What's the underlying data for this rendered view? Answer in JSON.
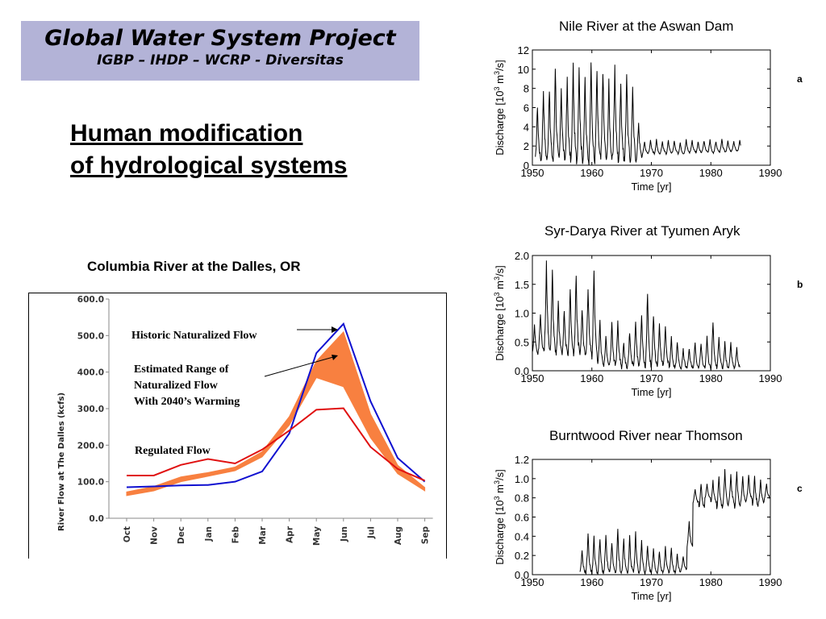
{
  "header": {
    "title": "Global Water System Project",
    "subtitle": "IGBP – IHDP – WCRP - Diversitas"
  },
  "slide_title": {
    "line1": "Human modification",
    "line2": "of hydrological systems"
  },
  "colors": {
    "header_bg": "#b3b3d7",
    "historic": "#1010d0",
    "regulated": "#e01010",
    "range": "#f88040"
  },
  "chart_data": [
    {
      "type": "line",
      "title": "Columbia River at the Dalles, OR",
      "ylabel": "River Flow at The Dalles (kcfs)",
      "xlabel": "",
      "categories": [
        "Oct",
        "Nov",
        "Dec",
        "Jan",
        "Feb",
        "Mar",
        "Apr",
        "May",
        "Jun",
        "Jul",
        "Aug",
        "Sep"
      ],
      "yticks": [
        "0.0",
        "100.0",
        "200.0",
        "300.0",
        "400.0",
        "500.0",
        "600.0"
      ],
      "ylim": [
        0,
        600
      ],
      "grid": false,
      "series": [
        {
          "name": "Historic Naturalized Flow",
          "color": "#1010d0",
          "values": [
            85,
            87,
            90,
            91,
            100,
            128,
            232,
            452,
            532,
            320,
            165,
            100
          ]
        },
        {
          "name": "Regulated Flow",
          "color": "#e01010",
          "values": [
            117,
            117,
            146,
            162,
            150,
            188,
            240,
            297,
            301,
            195,
            135,
            103
          ]
        }
      ],
      "band": {
        "name": "Estimated Range of Naturalized Flow With 2040’s Warming",
        "color": "#f88040",
        "lower": [
          62,
          75,
          100,
          115,
          130,
          168,
          255,
          385,
          360,
          220,
          122,
          75
        ],
        "upper": [
          72,
          87,
          113,
          125,
          140,
          182,
          278,
          430,
          510,
          285,
          145,
          84
        ]
      },
      "annotations": {
        "historic": "Historic Naturalized Flow",
        "range_line1": "Estimated Range of",
        "range_line2": "Naturalized Flow",
        "range_line3": "With 2040’s Warming",
        "regulated": "Regulated Flow"
      }
    },
    {
      "type": "line",
      "title": "Nile River at the Aswan Dam",
      "xlabel": "Time [yr]",
      "ylabel_main": "Discharge [10",
      "ylabel_sup": "3",
      "ylabel_tail": " m",
      "ylabel_sup2": "3",
      "ylabel_end": "/s]",
      "panel_label": "a",
      "xlim": [
        1950,
        1990
      ],
      "ylim": [
        0,
        12
      ],
      "xticks": [
        "1950",
        "1960",
        "1970",
        "1980",
        "1990"
      ],
      "yticks": [
        "0",
        "2",
        "4",
        "6",
        "8",
        "10",
        "12"
      ],
      "series": [
        {
          "name": "",
          "start_year": 1950.5,
          "end_year": 1985,
          "annual_peaks": [
            6.4,
            8.1,
            8.3,
            10.7,
            8.4,
            9.1,
            10.6,
            10.7,
            9.2,
            11.3,
            9.9,
            10.3,
            8.8,
            10.6,
            9.1,
            10.1,
            8.3,
            4.6,
            2.5,
            2.6,
            2.7,
            2.5,
            2.6,
            2.6,
            2.4,
            2.7,
            2.6,
            2.5,
            2.6,
            2.7,
            2.5,
            2.7,
            2.6,
            2.5,
            2.6
          ],
          "annual_lows": [
            0.6,
            0.6,
            0.6,
            0.5,
            0.6,
            0.6,
            0.5,
            0.6,
            0.6,
            0.5,
            0.6,
            0.6,
            0.5,
            0.6,
            0.6,
            0.5,
            0.6,
            0.8,
            1.2,
            1.3,
            1.2,
            1.3,
            1.2,
            1.3,
            1.2,
            1.3,
            1.4,
            1.3,
            1.4,
            1.3,
            1.4,
            1.4,
            1.4,
            1.5,
            1.5
          ]
        }
      ]
    },
    {
      "type": "line",
      "title": "Syr-Darya River at Tyumen Aryk",
      "xlabel": "Time [yr]",
      "ylabel_main": "Discharge [10",
      "ylabel_sup": "3",
      "ylabel_tail": " m",
      "ylabel_sup2": "3",
      "ylabel_end": "/s]",
      "panel_label": "b",
      "xlim": [
        1950,
        1990
      ],
      "ylim": [
        0,
        2.0
      ],
      "xticks": [
        "1950",
        "1960",
        "1970",
        "1980",
        "1990"
      ],
      "yticks": [
        "0.0",
        "0.5",
        "1.0",
        "1.5",
        "2.0"
      ],
      "series": [
        {
          "name": "",
          "start_year": 1950,
          "end_year": 1985,
          "annual_peaks": [
            0.8,
            1.0,
            1.9,
            1.8,
            1.2,
            1.1,
            1.5,
            1.7,
            1.1,
            1.5,
            1.8,
            0.9,
            0.6,
            0.9,
            0.9,
            0.5,
            0.7,
            0.9,
            1.0,
            1.4,
            1.0,
            0.8,
            0.8,
            0.6,
            0.5,
            0.4,
            0.4,
            0.5,
            0.5,
            0.6,
            0.9,
            0.6,
            0.5,
            0.5,
            0.4
          ],
          "annual_lows": [
            0.3,
            0.35,
            0.4,
            0.3,
            0.3,
            0.3,
            0.3,
            0.3,
            0.3,
            0.3,
            0.2,
            0.1,
            0.1,
            0.1,
            0.1,
            0.05,
            0.1,
            0.1,
            0.1,
            0.1,
            0.1,
            0.1,
            0.1,
            0.05,
            0.05,
            0.05,
            0.05,
            0.05,
            0.05,
            0.05,
            0.05,
            0.05,
            0.05,
            0.05,
            0.05
          ]
        }
      ]
    },
    {
      "type": "line",
      "title": "Burntwood River near Thomson",
      "xlabel": "Time [yr]",
      "ylabel_main": "Discharge [10",
      "ylabel_sup": "3",
      "ylabel_tail": " m",
      "ylabel_sup2": "3",
      "ylabel_end": "/s]",
      "panel_label": "c",
      "xlim": [
        1950,
        1990
      ],
      "ylim": [
        0,
        1.2
      ],
      "xticks": [
        "1950",
        "1960",
        "1970",
        "1980",
        "1990"
      ],
      "yticks": [
        "0.0",
        "0.2",
        "0.4",
        "0.6",
        "0.8",
        "1.0",
        "1.2"
      ],
      "series": [
        {
          "name": "",
          "start_year": 1958,
          "end_year": 1990,
          "annual_peaks": [
            0.25,
            0.45,
            0.4,
            0.38,
            0.42,
            0.35,
            0.48,
            0.38,
            0.4,
            0.44,
            0.36,
            0.3,
            0.28,
            0.25,
            0.3,
            0.28,
            0.22,
            0.2,
            0.55,
            0.9,
            0.95,
            0.95,
            0.98,
            1.05,
            1.1,
            1.05,
            1.1,
            1.02,
            1.05,
            1.05,
            1.0,
            0.95
          ],
          "annual_lows": [
            0.02,
            0.02,
            0.02,
            0.02,
            0.02,
            0.02,
            0.02,
            0.02,
            0.02,
            0.02,
            0.02,
            0.02,
            0.02,
            0.02,
            0.02,
            0.02,
            0.02,
            0.05,
            0.3,
            0.75,
            0.7,
            0.8,
            0.75,
            0.7,
            0.72,
            0.75,
            0.7,
            0.75,
            0.78,
            0.72,
            0.75,
            0.8
          ]
        }
      ]
    }
  ]
}
